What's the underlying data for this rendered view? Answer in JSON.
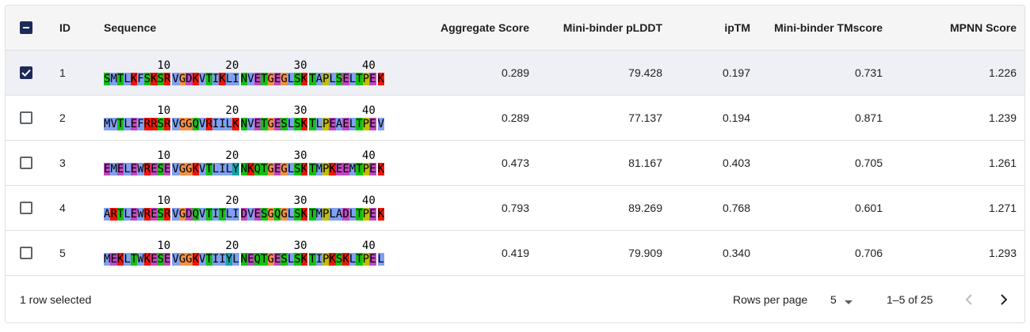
{
  "table": {
    "columns": {
      "id": "ID",
      "sequence": "Sequence",
      "aggregate": "Aggregate Score",
      "plddt": "Mini-binder pLDDT",
      "iptm": "ipTM",
      "tmscore": "Mini-binder TMscore",
      "mpnn": "MPNN Score"
    },
    "seq_ticks": [
      "10",
      "20",
      "30",
      "40"
    ],
    "rows": [
      {
        "id": "1",
        "selected": true,
        "sequence": "SMTLKFSKSRVGDKVTIKLINVETGEGLSKTAPLSELTPEK",
        "aggregate": "0.289",
        "plddt": "79.428",
        "iptm": "0.197",
        "tmscore": "0.731",
        "mpnn": "1.226"
      },
      {
        "id": "2",
        "selected": false,
        "sequence": "MVTLEFRRSRVGGQVRIILKNVETGESLSKTLPEAELTPEV",
        "aggregate": "0.289",
        "plddt": "77.137",
        "iptm": "0.194",
        "tmscore": "0.871",
        "mpnn": "1.239"
      },
      {
        "id": "3",
        "selected": false,
        "sequence": "EMELEWRESEVGGKVTLILYNKQTGEGLSKTMPKEEMTPEK",
        "aggregate": "0.473",
        "plddt": "81.167",
        "iptm": "0.403",
        "tmscore": "0.705",
        "mpnn": "1.261"
      },
      {
        "id": "4",
        "selected": false,
        "sequence": "ARTLEWRESRVGDQVTITLIDVESGQGLSKTMPLADLTPEK",
        "aggregate": "0.793",
        "plddt": "89.269",
        "iptm": "0.768",
        "tmscore": "0.601",
        "mpnn": "1.271"
      },
      {
        "id": "5",
        "selected": false,
        "sequence": "MEKLTWKESEVGGKVTIIYLNEQTGESLSKTIPKSKLTPEL",
        "aggregate": "0.419",
        "plddt": "79.909",
        "iptm": "0.340",
        "tmscore": "0.706",
        "mpnn": "1.293"
      }
    ]
  },
  "footer": {
    "selection": "1 row selected",
    "rows_per_page_label": "Rows per page",
    "rows_per_page_value": "5",
    "range": "1–5 of 25"
  },
  "residue_colors": {
    "A": "#80a0f0",
    "I": "#80a0f0",
    "L": "#80a0f0",
    "M": "#80a0f0",
    "F": "#80a0f0",
    "W": "#80a0f0",
    "V": "#80a0f0",
    "K": "#f01505",
    "R": "#f01505",
    "E": "#c048c0",
    "D": "#c048c0",
    "N": "#15c015",
    "Q": "#15c015",
    "S": "#15c015",
    "T": "#15c015",
    "C": "#f08080",
    "G": "#f09048",
    "P": "#c0c000",
    "H": "#15a4a4",
    "Y": "#15a4a4"
  },
  "icons": {
    "header_checkbox": "indeterminate-checkbox-icon",
    "checked": "checked-checkbox-icon",
    "unchecked": "unchecked-checkbox-icon",
    "dropdown": "caret-down-icon",
    "prev": "chevron-left-icon",
    "next": "chevron-right-icon"
  }
}
